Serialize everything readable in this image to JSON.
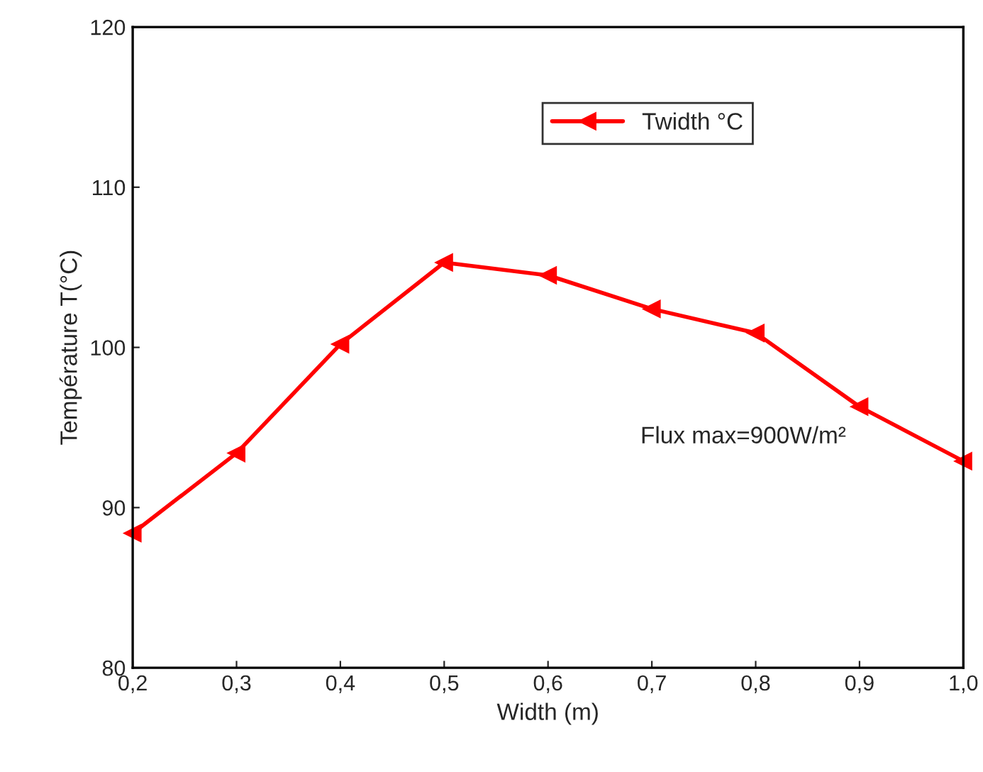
{
  "chart_data": {
    "type": "line",
    "xlabel": "Width (m)",
    "ylabel": "Température T(°C)",
    "x": [
      0.2,
      0.3,
      0.4,
      0.5,
      0.6,
      0.7,
      0.8,
      0.9,
      1.0
    ],
    "series": [
      {
        "name": "Twidth °C",
        "color": "#ff0000",
        "values": [
          88.4,
          93.4,
          100.2,
          105.3,
          104.5,
          102.4,
          100.9,
          96.3,
          92.9
        ]
      }
    ],
    "xlim": [
      0.2,
      1.0
    ],
    "ylim": [
      80,
      120
    ],
    "xticks": [
      {
        "value": 0.2,
        "label": "0,2"
      },
      {
        "value": 0.3,
        "label": "0,3"
      },
      {
        "value": 0.4,
        "label": "0,4"
      },
      {
        "value": 0.5,
        "label": "0,5"
      },
      {
        "value": 0.6,
        "label": "0,6"
      },
      {
        "value": 0.7,
        "label": "0,7"
      },
      {
        "value": 0.8,
        "label": "0,8"
      },
      {
        "value": 0.9,
        "label": "0,9"
      },
      {
        "value": 1.0,
        "label": "1,0"
      }
    ],
    "yticks": [
      80,
      90,
      100,
      110,
      120
    ],
    "annotations": [
      "Flux max=900W/m²"
    ],
    "marker": "triangle",
    "line_style": "solid",
    "legend": "top",
    "grid": false
  }
}
